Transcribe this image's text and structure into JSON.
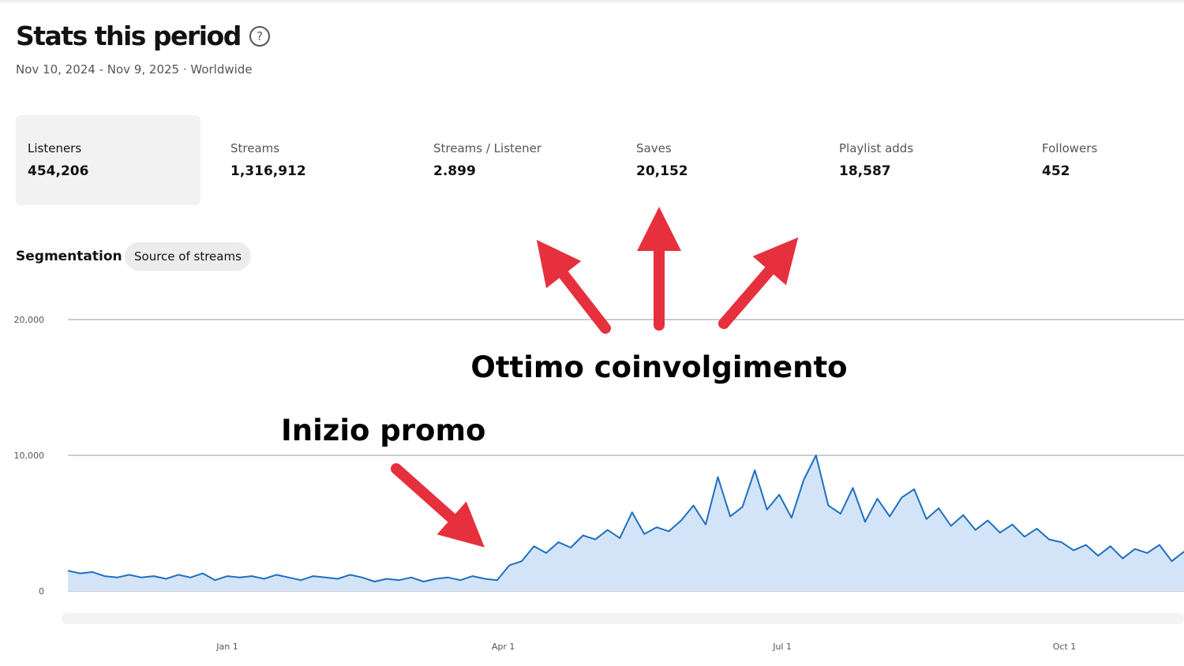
{
  "header": {
    "title": "Stats this period",
    "subtitle": "Nov 10, 2024 - Nov 9, 2025 · Worldwide"
  },
  "stats": [
    {
      "label": "Listeners",
      "value": "454,206"
    },
    {
      "label": "Streams",
      "value": "1,316,912"
    },
    {
      "label": "Streams / Listener",
      "value": "2.899"
    },
    {
      "label": "Saves",
      "value": "20,152"
    },
    {
      "label": "Playlist adds",
      "value": "18,587"
    },
    {
      "label": "Followers",
      "value": "452"
    }
  ],
  "segmentation": {
    "label": "Segmentation",
    "chip": "Source of streams"
  },
  "annotations": [
    "Ottimo coinvolgimento",
    "Inizio promo"
  ],
  "chart_data": {
    "type": "area",
    "color": "#1f6fc0",
    "fill": "#d4e4f8",
    "x": [
      0,
      4,
      8,
      12,
      16,
      20,
      24,
      28,
      32,
      36,
      40,
      44,
      48,
      52,
      56,
      60,
      64,
      68,
      72,
      76,
      80,
      84,
      88,
      92,
      96,
      100,
      104,
      108,
      112,
      116,
      120,
      124,
      128,
      132,
      136,
      140,
      144,
      148,
      152,
      156,
      160,
      164,
      168,
      172,
      176,
      180,
      184,
      188,
      192,
      196,
      200,
      204,
      208,
      212,
      216,
      220,
      224,
      228,
      232,
      236,
      240,
      244,
      248,
      252,
      256,
      260,
      264,
      268,
      272,
      276,
      280,
      284,
      288,
      292,
      296,
      300,
      304,
      308,
      312,
      316,
      320,
      324,
      328,
      332,
      336,
      340,
      344,
      348,
      352,
      356,
      360,
      364
    ],
    "values": [
      1500,
      1300,
      1400,
      1100,
      1000,
      1200,
      1000,
      1100,
      900,
      1200,
      1000,
      1300,
      800,
      1100,
      1000,
      1100,
      900,
      1200,
      1000,
      800,
      1100,
      1000,
      900,
      1200,
      1000,
      700,
      900,
      800,
      1000,
      700,
      900,
      1000,
      800,
      1100,
      900,
      800,
      1900,
      2200,
      3300,
      2800,
      3600,
      3200,
      4100,
      3800,
      4500,
      3900,
      5800,
      4200,
      4700,
      4400,
      5200,
      6300,
      4900,
      8400,
      5500,
      6200,
      8900,
      6000,
      7100,
      5400,
      8200,
      10000,
      6300,
      5700,
      7600,
      5100,
      6800,
      5500,
      6900,
      7500,
      5300,
      6100,
      4800,
      5600,
      4500,
      5200,
      4300,
      4900,
      4000,
      4600,
      3800,
      3600,
      3000,
      3400,
      2600,
      3300,
      2400,
      3100,
      2800,
      3400,
      2200,
      2900
    ],
    "xlim": [
      0,
      364
    ],
    "xticks": [
      {
        "value": 52,
        "label": "Jan 1"
      },
      {
        "value": 142,
        "label": "Apr 1"
      },
      {
        "value": 233,
        "label": "Jul 1"
      },
      {
        "value": 325,
        "label": "Oct 1"
      }
    ],
    "ylim": [
      0,
      20000
    ],
    "yticks": [
      0,
      {
        "value": 10000,
        "label": "10,000"
      },
      {
        "value": 20000,
        "label": "20,000"
      }
    ],
    "grid": true
  }
}
